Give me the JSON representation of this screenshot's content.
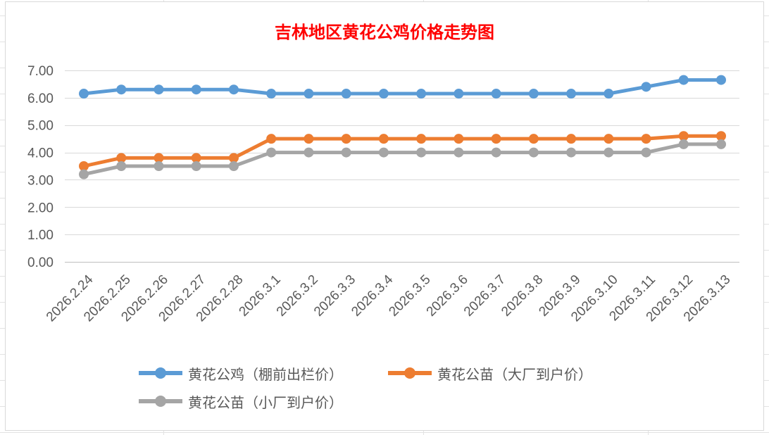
{
  "chart_data": {
    "type": "line",
    "title": "吉林地区黄花公鸡价格走势图",
    "categories": [
      "2026.2.24",
      "2026.2.25",
      "2026.2.26",
      "2026.2.27",
      "2026.2.28",
      "2026.3.1",
      "2026.3.2",
      "2026.3.3",
      "2026.3.4",
      "2026.3.5",
      "2026.3.6",
      "2026.3.7",
      "2026.3.8",
      "2026.3.9",
      "2026.3.10",
      "2026.3.11",
      "2026.3.12",
      "2026.3.13"
    ],
    "ylim": [
      0,
      7
    ],
    "yticks": [
      "0.00",
      "1.00",
      "2.00",
      "3.00",
      "4.00",
      "5.00",
      "6.00",
      "7.00"
    ],
    "grid": true,
    "legend_position": "bottom",
    "series": [
      {
        "name": "黄花公鸡（棚前出栏价）",
        "color": "#5b9bd5",
        "values": [
          6.15,
          6.3,
          6.3,
          6.3,
          6.3,
          6.15,
          6.15,
          6.15,
          6.15,
          6.15,
          6.15,
          6.15,
          6.15,
          6.15,
          6.15,
          6.4,
          6.65,
          6.65
        ]
      },
      {
        "name": "黄花公苗（大厂到户价）",
        "color": "#ed7d31",
        "values": [
          3.5,
          3.8,
          3.8,
          3.8,
          3.8,
          4.5,
          4.5,
          4.5,
          4.5,
          4.5,
          4.5,
          4.5,
          4.5,
          4.5,
          4.5,
          4.5,
          4.6,
          4.6
        ]
      },
      {
        "name": "黄花公苗（小厂到户价）",
        "color": "#a5a5a5",
        "values": [
          3.2,
          3.5,
          3.5,
          3.5,
          3.5,
          4.0,
          4.0,
          4.0,
          4.0,
          4.0,
          4.0,
          4.0,
          4.0,
          4.0,
          4.0,
          4.0,
          4.3,
          4.3
        ]
      }
    ]
  }
}
